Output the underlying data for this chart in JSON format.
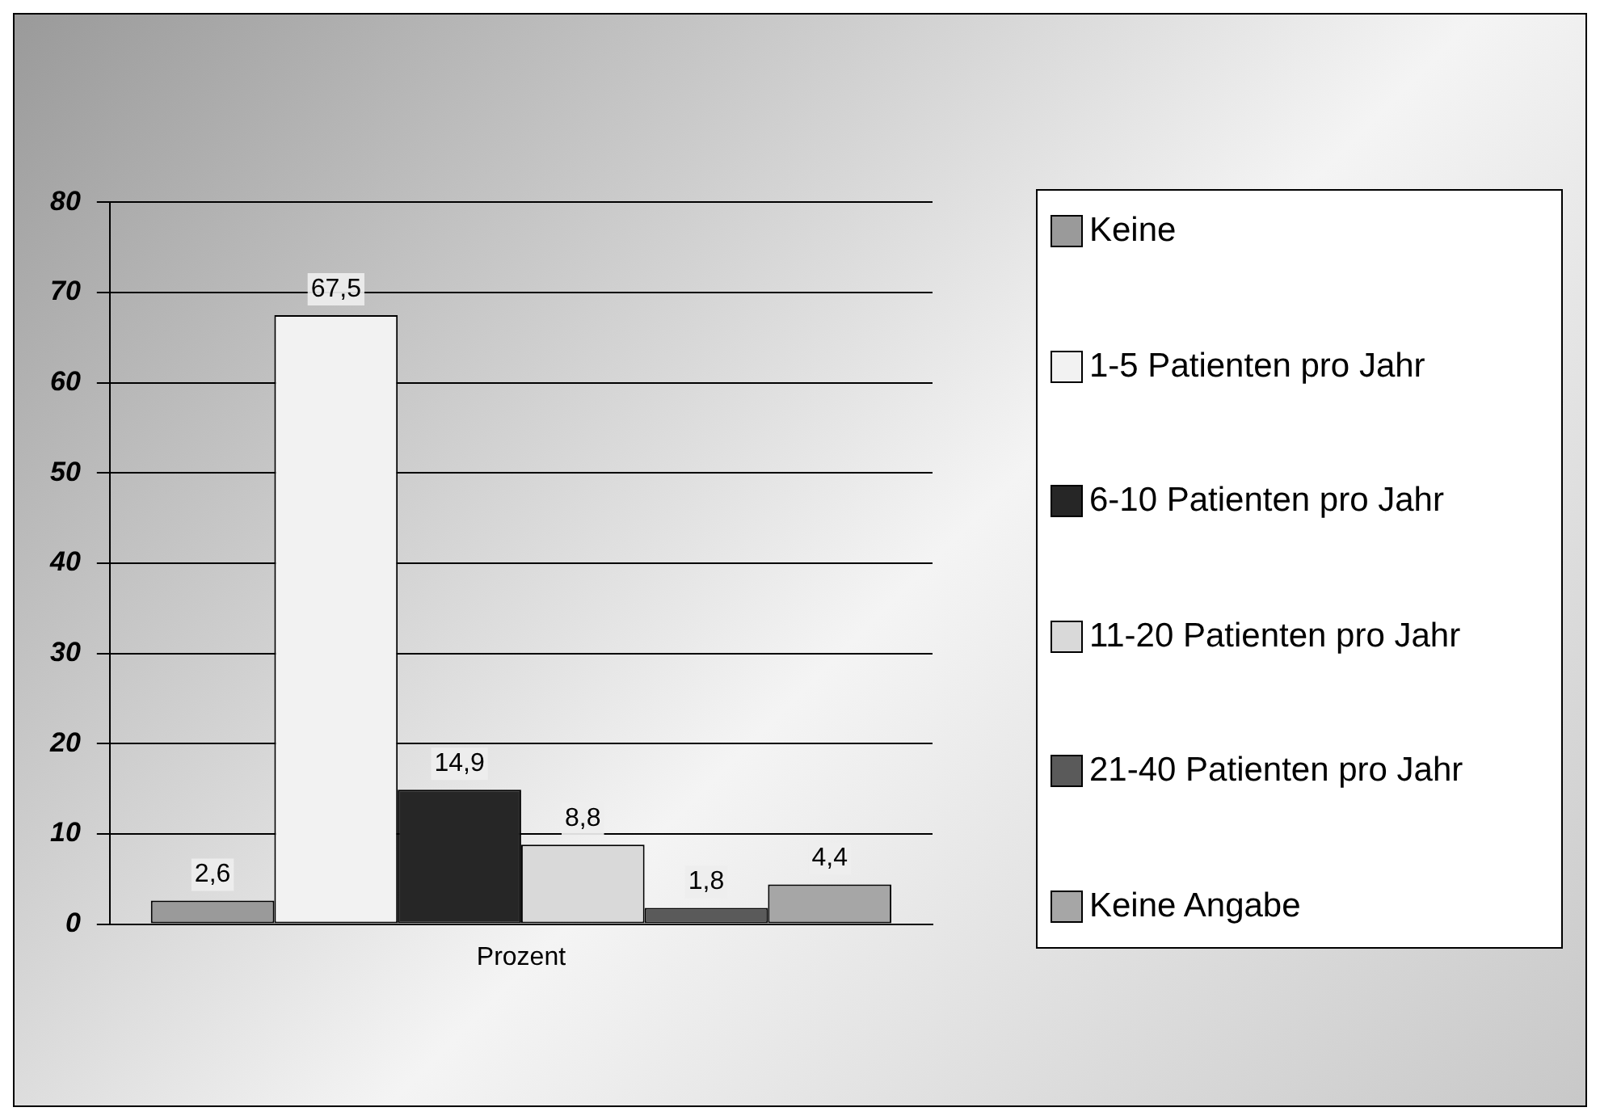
{
  "chart_data": {
    "type": "bar",
    "categories": [
      "Prozent"
    ],
    "series": [
      {
        "name": "Keine",
        "color": "#9a9a9a",
        "values": [
          2.6
        ],
        "value_labels": [
          "2,6"
        ]
      },
      {
        "name": "1-5 Patienten pro Jahr",
        "color": "#f2f2f2",
        "values": [
          67.5
        ],
        "value_labels": [
          "67,5"
        ]
      },
      {
        "name": "6-10 Patienten pro Jahr",
        "color": "#262626",
        "values": [
          14.9
        ],
        "value_labels": [
          "14,9"
        ]
      },
      {
        "name": "11-20 Patienten pro Jahr",
        "color": "#d9d9d9",
        "values": [
          8.8
        ],
        "value_labels": [
          "8,8"
        ]
      },
      {
        "name": "21-40 Patienten pro Jahr",
        "color": "#5a5a5a",
        "values": [
          1.8
        ],
        "value_labels": [
          "1,8"
        ]
      },
      {
        "name": "Keine Angabe",
        "color": "#a6a6a6",
        "values": [
          4.4
        ],
        "value_labels": [
          "4,4"
        ]
      }
    ],
    "ylim": [
      0,
      80
    ],
    "yticks": [
      0,
      10,
      20,
      30,
      40,
      50,
      60,
      70,
      80
    ],
    "grid": "y",
    "legend": "right"
  }
}
